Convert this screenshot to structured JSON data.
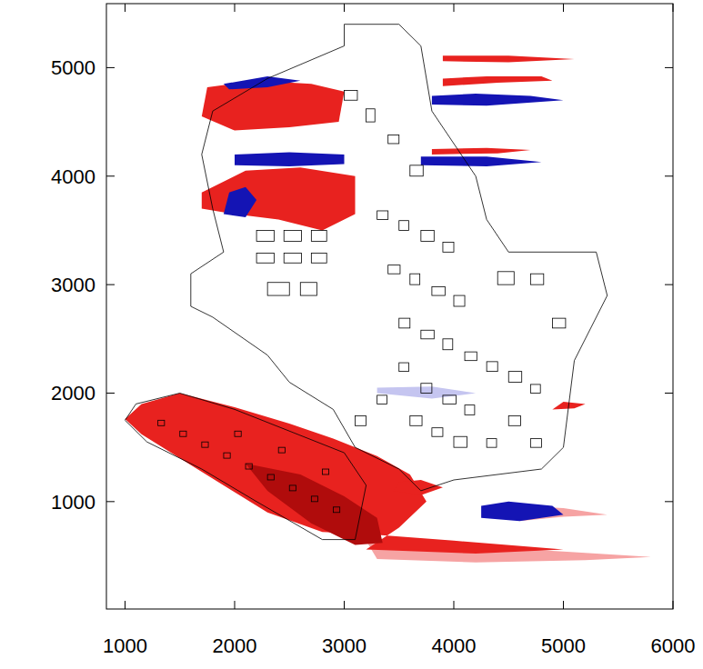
{
  "chart_data": {
    "type": "field",
    "xlim": [
      830,
      6000
    ],
    "ylim": [
      10,
      5590
    ],
    "xticks": [
      1000,
      2000,
      3000,
      4000,
      5000,
      6000
    ],
    "yticks": [
      1000,
      2000,
      3000,
      4000,
      5000
    ],
    "grid": false,
    "patches": [
      {
        "color": "#f6a3a3",
        "x": [
          3300,
          4200,
          5200,
          5800,
          5000,
          4000,
          3200
        ],
        "y": [
          470,
          440,
          460,
          490,
          540,
          600,
          640
        ]
      },
      {
        "color": "#e8221f",
        "x": [
          1000,
          1150,
          1500,
          2000,
          2500,
          2900,
          3300,
          3600,
          3750,
          3500,
          3200,
          4200,
          5000,
          4000,
          3200,
          2800,
          2300,
          1900,
          1500,
          1150
        ],
        "y": [
          1760,
          1900,
          2000,
          1870,
          1720,
          1580,
          1420,
          1250,
          1000,
          760,
          560,
          520,
          560,
          640,
          700,
          720,
          900,
          1150,
          1400,
          1620
        ]
      },
      {
        "color": "#b00c0c",
        "x": [
          2100,
          2600,
          3000,
          3300,
          3350,
          3100,
          2700,
          2300
        ],
        "y": [
          1350,
          1250,
          1050,
          850,
          620,
          600,
          800,
          1100
        ]
      },
      {
        "color": "#f6a3a3",
        "x": [
          4600,
          5000,
          5400,
          5000,
          4600
        ],
        "y": [
          820,
          860,
          880,
          940,
          960
        ]
      },
      {
        "color": "#1414b4",
        "x": [
          4250,
          4600,
          5000,
          4900,
          4500,
          4250
        ],
        "y": [
          850,
          820,
          880,
          960,
          1000,
          960
        ]
      },
      {
        "color": "#e8221f",
        "x": [
          3450,
          3700,
          3900,
          3700,
          3500
        ],
        "y": [
          1100,
          1060,
          1130,
          1200,
          1180
        ]
      },
      {
        "color": "#e8221f",
        "x": [
          1750,
          2200,
          2700,
          3000,
          2950,
          2500,
          2000,
          1700
        ],
        "y": [
          4820,
          4880,
          4850,
          4780,
          4500,
          4450,
          4420,
          4550
        ]
      },
      {
        "color": "#1414b4",
        "x": [
          1900,
          2300,
          2600,
          2300,
          1950
        ],
        "y": [
          4850,
          4920,
          4880,
          4820,
          4800
        ]
      },
      {
        "color": "#e8221f",
        "x": [
          3900,
          4400,
          4900,
          4800,
          4300,
          3900
        ],
        "y": [
          4830,
          4860,
          4880,
          4920,
          4920,
          4900
        ]
      },
      {
        "color": "#1414b4",
        "x": [
          3800,
          4300,
          5000,
          4700,
          4200,
          3800
        ],
        "y": [
          4660,
          4650,
          4700,
          4740,
          4760,
          4740
        ]
      },
      {
        "color": "#e8221f",
        "x": [
          3900,
          4500,
          5100,
          4500,
          3900
        ],
        "y": [
          5060,
          5050,
          5080,
          5110,
          5110
        ]
      },
      {
        "color": "#1414b4",
        "x": [
          3700,
          4300,
          4800,
          4300,
          3700
        ],
        "y": [
          4100,
          4090,
          4130,
          4180,
          4180
        ]
      },
      {
        "color": "#e8221f",
        "x": [
          3800,
          4400,
          4700,
          4300,
          3800
        ],
        "y": [
          4200,
          4210,
          4240,
          4260,
          4250
        ]
      },
      {
        "color": "#1414b4",
        "x": [
          2000,
          2500,
          3000,
          3000,
          2500,
          2000
        ],
        "y": [
          4100,
          4090,
          4110,
          4200,
          4220,
          4200
        ]
      },
      {
        "color": "#e8221f",
        "x": [
          1700,
          2100,
          2600,
          3100,
          3100,
          2800,
          2400,
          2000,
          1700
        ],
        "y": [
          3850,
          4050,
          4080,
          4000,
          3650,
          3500,
          3600,
          3650,
          3700
        ]
      },
      {
        "color": "#1414b4",
        "x": [
          1900,
          2100,
          2200,
          2100,
          1950
        ],
        "y": [
          3650,
          3620,
          3780,
          3900,
          3850
        ]
      },
      {
        "color": "#e8221f",
        "x": [
          4900,
          5100,
          5200,
          5000
        ],
        "y": [
          1850,
          1860,
          1900,
          1920
        ]
      },
      {
        "color": "#c5c5f0",
        "x": [
          3300,
          3800,
          4200,
          3800,
          3300
        ],
        "y": [
          2000,
          1950,
          2000,
          2060,
          2050
        ]
      }
    ],
    "outlines": [
      {
        "x": [
          3000,
          3500,
          3700,
          3800,
          4200,
          4300,
          4500,
          5300,
          5400,
          5100,
          5000,
          4800,
          4000,
          3700,
          3500,
          3100,
          2900,
          2500,
          2300,
          1800,
          1600,
          1600,
          1900,
          1800,
          1700,
          1800,
          2300,
          3000
        ],
        "y": [
          5400,
          5400,
          5200,
          4600,
          4000,
          3600,
          3300,
          3300,
          2900,
          2300,
          1500,
          1300,
          1200,
          1100,
          1300,
          1500,
          1850,
          2100,
          2350,
          2700,
          2800,
          3100,
          3300,
          3700,
          4200,
          4600,
          4900,
          5200
        ]
      },
      {
        "x": [
          1000,
          1100,
          1500,
          2000,
          3000,
          3200,
          3100,
          2800,
          2200,
          1700,
          1200,
          1000
        ],
        "y": [
          1750,
          1900,
          2000,
          1850,
          1450,
          1150,
          650,
          650,
          1000,
          1300,
          1550,
          1750
        ]
      }
    ],
    "buildings": [
      [
        3000,
        4700,
        120,
        90
      ],
      [
        3200,
        4500,
        80,
        120
      ],
      [
        3400,
        4300,
        100,
        80
      ],
      [
        3600,
        4000,
        120,
        100
      ],
      [
        2200,
        3400,
        160,
        100
      ],
      [
        2450,
        3400,
        160,
        100
      ],
      [
        2700,
        3400,
        140,
        100
      ],
      [
        2200,
        3200,
        160,
        90
      ],
      [
        2450,
        3200,
        160,
        90
      ],
      [
        2700,
        3200,
        140,
        90
      ],
      [
        2300,
        2900,
        200,
        120
      ],
      [
        2600,
        2900,
        150,
        120
      ],
      [
        3300,
        3600,
        100,
        80
      ],
      [
        3500,
        3500,
        90,
        90
      ],
      [
        3700,
        3400,
        120,
        100
      ],
      [
        3900,
        3300,
        100,
        90
      ],
      [
        3400,
        3100,
        110,
        80
      ],
      [
        3600,
        3000,
        90,
        100
      ],
      [
        3800,
        2900,
        120,
        80
      ],
      [
        4000,
        2800,
        100,
        100
      ],
      [
        4400,
        3000,
        150,
        120
      ],
      [
        4700,
        3000,
        120,
        100
      ],
      [
        4900,
        2600,
        120,
        90
      ],
      [
        3500,
        2600,
        100,
        90
      ],
      [
        3700,
        2500,
        120,
        80
      ],
      [
        3900,
        2400,
        90,
        100
      ],
      [
        4100,
        2300,
        110,
        80
      ],
      [
        4300,
        2200,
        100,
        90
      ],
      [
        4500,
        2100,
        120,
        100
      ],
      [
        4700,
        2000,
        90,
        80
      ],
      [
        3500,
        2200,
        90,
        80
      ],
      [
        3700,
        2000,
        100,
        90
      ],
      [
        3900,
        1900,
        120,
        80
      ],
      [
        4100,
        1800,
        90,
        90
      ],
      [
        3600,
        1700,
        110,
        90
      ],
      [
        3800,
        1600,
        100,
        80
      ],
      [
        4000,
        1500,
        120,
        100
      ],
      [
        4300,
        1500,
        90,
        80
      ],
      [
        4500,
        1700,
        110,
        90
      ],
      [
        4700,
        1500,
        100,
        80
      ],
      [
        3300,
        1900,
        90,
        80
      ],
      [
        3100,
        1700,
        100,
        90
      ],
      [
        1300,
        1700,
        60,
        50
      ],
      [
        1500,
        1600,
        60,
        50
      ],
      [
        1700,
        1500,
        60,
        50
      ],
      [
        1900,
        1400,
        60,
        50
      ],
      [
        2100,
        1300,
        60,
        50
      ],
      [
        2300,
        1200,
        60,
        50
      ],
      [
        2500,
        1100,
        60,
        50
      ],
      [
        2700,
        1000,
        60,
        50
      ],
      [
        2900,
        900,
        60,
        50
      ],
      [
        2000,
        1600,
        60,
        50
      ],
      [
        2400,
        1450,
        60,
        50
      ],
      [
        2800,
        1250,
        60,
        50
      ]
    ]
  }
}
